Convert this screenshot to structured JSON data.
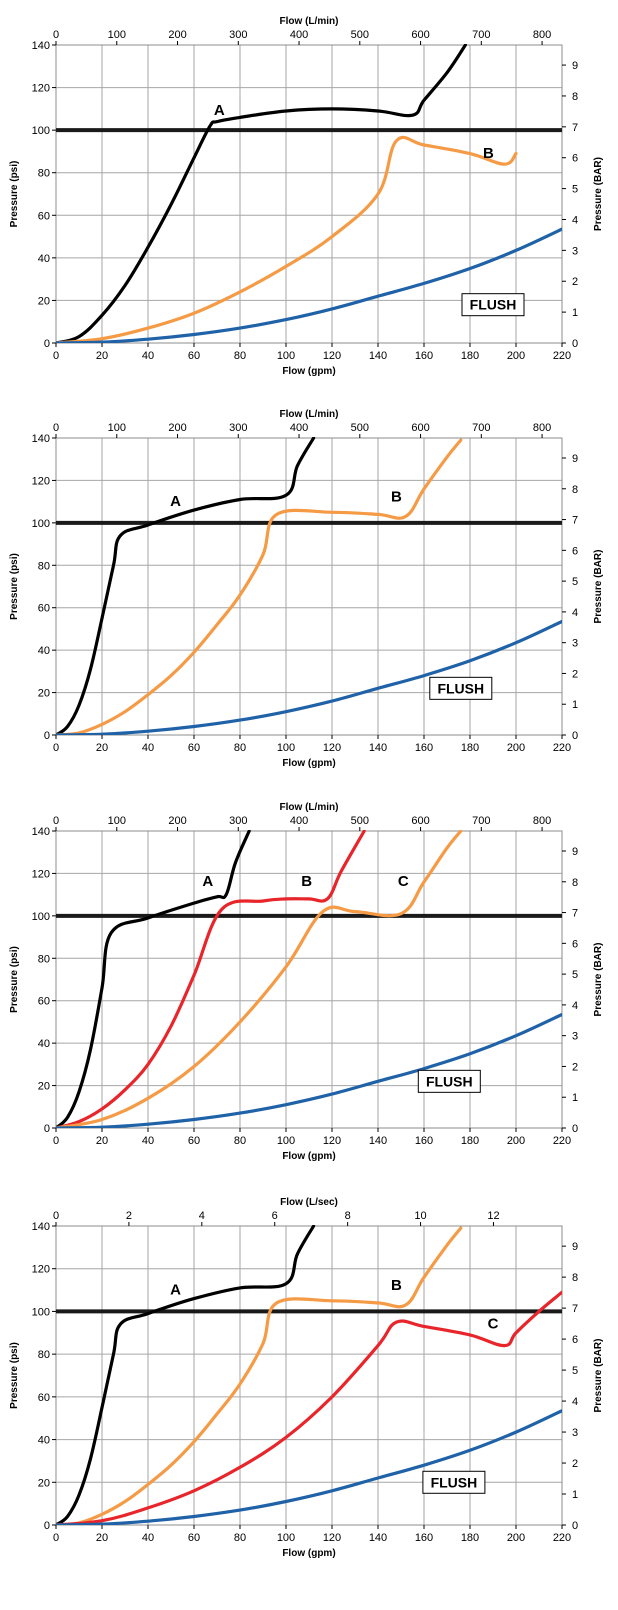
{
  "chart_data": [
    {
      "type": "line",
      "title": "",
      "xlabel": "Flow (gpm)",
      "ylabel": "Pressure (psi)",
      "x2label": "Flow (L/min)",
      "y2label": "Pressure (BAR)",
      "xlim": [
        0,
        220
      ],
      "ylim": [
        0,
        140
      ],
      "x2lim": [
        0,
        832.8
      ],
      "y2lim": [
        0,
        9.65
      ],
      "xticks": [
        "0",
        "20",
        "40",
        "60",
        "80",
        "100",
        "120",
        "140",
        "160",
        "180",
        "200",
        "220"
      ],
      "yticks": [
        "0",
        "20",
        "40",
        "60",
        "80",
        "100",
        "120",
        "140"
      ],
      "x2ticks": [
        "0",
        "100",
        "200",
        "300",
        "400",
        "500",
        "600",
        "700",
        "800"
      ],
      "y2ticks": [
        "0",
        "1",
        "2",
        "3",
        "4",
        "5",
        "6",
        "7",
        "8",
        "9"
      ],
      "grid": true,
      "reference_line": {
        "y": 100,
        "color": "#1a1a1a"
      },
      "flush_label": "FLUSH",
      "flush_box": {
        "x": 190,
        "y": 18
      },
      "series": [
        {
          "name": "A",
          "color": "#000000",
          "x": [
            0,
            10,
            20,
            30,
            40,
            50,
            60,
            67,
            70,
            80,
            100,
            120,
            140,
            155,
            160,
            170,
            178
          ],
          "y": [
            0,
            3,
            13,
            27,
            45,
            65,
            87,
            102,
            104,
            106,
            109,
            110,
            109,
            107,
            114,
            127,
            140
          ],
          "label_at": [
            71,
            107
          ]
        },
        {
          "name": "B",
          "color": "#f59a45",
          "x": [
            0,
            20,
            40,
            60,
            80,
            100,
            120,
            140,
            148,
            160,
            180,
            195,
            200
          ],
          "y": [
            0,
            2,
            7,
            14,
            24,
            36,
            50,
            70,
            95,
            93,
            89,
            84,
            89
          ],
          "label_at": [
            188,
            87
          ]
        },
        {
          "name": "FLUSH",
          "color": "#1f62a8",
          "x": [
            0,
            20,
            40,
            60,
            80,
            100,
            120,
            140,
            160,
            180,
            200,
            220
          ],
          "y": [
            0,
            0.4,
            1.8,
            4,
            7,
            11,
            16,
            22,
            28,
            35,
            43.5,
            53.5
          ]
        }
      ]
    },
    {
      "type": "line",
      "title": "",
      "xlabel": "Flow (gpm)",
      "ylabel": "Pressure (psi)",
      "x2label": "Flow (L/min)",
      "y2label": "Pressure (BAR)",
      "xlim": [
        0,
        220
      ],
      "ylim": [
        0,
        140
      ],
      "x2lim": [
        0,
        832.8
      ],
      "y2lim": [
        0,
        9.65
      ],
      "xticks": [
        "0",
        "20",
        "40",
        "60",
        "80",
        "100",
        "120",
        "140",
        "160",
        "180",
        "200",
        "220"
      ],
      "yticks": [
        "0",
        "20",
        "40",
        "60",
        "80",
        "100",
        "120",
        "140"
      ],
      "x2ticks": [
        "0",
        "100",
        "200",
        "300",
        "400",
        "500",
        "600",
        "700",
        "800"
      ],
      "y2ticks": [
        "0",
        "1",
        "2",
        "3",
        "4",
        "5",
        "6",
        "7",
        "8",
        "9"
      ],
      "grid": true,
      "reference_line": {
        "y": 100,
        "color": "#1a1a1a"
      },
      "flush_label": "FLUSH",
      "flush_box": {
        "x": 176,
        "y": 22
      },
      "series": [
        {
          "name": "A",
          "color": "#000000",
          "x": [
            0,
            5,
            10,
            15,
            20,
            25,
            28,
            40,
            60,
            80,
            100,
            105,
            112
          ],
          "y": [
            0,
            4,
            14,
            31,
            55,
            80,
            94,
            99,
            106,
            111,
            113,
            127,
            140
          ],
          "label_at": [
            52,
            108
          ]
        },
        {
          "name": "B",
          "color": "#f59a45",
          "x": [
            0,
            10,
            20,
            30,
            40,
            50,
            60,
            70,
            80,
            90,
            96,
            120,
            140,
            152,
            160,
            170,
            176
          ],
          "y": [
            0,
            1,
            5,
            11,
            19,
            28,
            39,
            52,
            66,
            85,
            104,
            105,
            104,
            103,
            116,
            131,
            139
          ],
          "label_at": [
            148,
            110
          ]
        },
        {
          "name": "FLUSH",
          "color": "#1f62a8",
          "x": [
            0,
            20,
            40,
            60,
            80,
            100,
            120,
            140,
            160,
            180,
            200,
            220
          ],
          "y": [
            0,
            0.4,
            1.8,
            4,
            7,
            11,
            16,
            22,
            28,
            35,
            43.5,
            53.5
          ]
        }
      ]
    },
    {
      "type": "line",
      "title": "",
      "xlabel": "Flow (gpm)",
      "ylabel": "Pressure (psi)",
      "x2label": "Flow (L/min)",
      "y2label": "Pressure (BAR)",
      "xlim": [
        0,
        220
      ],
      "ylim": [
        0,
        140
      ],
      "x2lim": [
        0,
        832.8
      ],
      "y2lim": [
        0,
        9.65
      ],
      "xticks": [
        "0",
        "20",
        "40",
        "60",
        "80",
        "100",
        "120",
        "140",
        "160",
        "180",
        "200",
        "220"
      ],
      "yticks": [
        "0",
        "20",
        "40",
        "60",
        "80",
        "100",
        "120",
        "140"
      ],
      "x2ticks": [
        "0",
        "100",
        "200",
        "300",
        "400",
        "500",
        "600",
        "700",
        "800"
      ],
      "y2ticks": [
        "0",
        "1",
        "2",
        "3",
        "4",
        "5",
        "6",
        "7",
        "8",
        "9"
      ],
      "grid": true,
      "reference_line": {
        "y": 100,
        "color": "#1a1a1a"
      },
      "flush_label": "FLUSH",
      "flush_box": {
        "x": 171,
        "y": 22
      },
      "series": [
        {
          "name": "A",
          "color": "#000000",
          "x": [
            0,
            5,
            10,
            15,
            20,
            24,
            40,
            60,
            70,
            74,
            78,
            84
          ],
          "y": [
            0,
            5,
            17,
            37,
            66,
            92,
            99,
            106,
            109,
            110,
            125,
            140
          ],
          "label_at": [
            66,
            114
          ]
        },
        {
          "name": "B",
          "color": "#e8252a",
          "x": [
            0,
            10,
            20,
            30,
            40,
            50,
            60,
            72,
            90,
            100,
            110,
            118,
            124,
            134
          ],
          "y": [
            0,
            3,
            9,
            18,
            30,
            48,
            72,
            103,
            107,
            108,
            108,
            108,
            121,
            140
          ],
          "label_at": [
            109,
            114
          ]
        },
        {
          "name": "C",
          "color": "#f59a45",
          "x": [
            0,
            20,
            40,
            60,
            80,
            100,
            116,
            130,
            150,
            160,
            170,
            176
          ],
          "y": [
            0,
            4,
            14,
            29,
            50,
            76,
            102,
            102,
            101,
            116,
            132,
            140
          ],
          "label_at": [
            151,
            114
          ]
        },
        {
          "name": "FLUSH",
          "color": "#1f62a8",
          "x": [
            0,
            20,
            40,
            60,
            80,
            100,
            120,
            140,
            160,
            180,
            200,
            220
          ],
          "y": [
            0,
            0.4,
            1.8,
            4,
            7,
            11,
            16,
            22,
            28,
            35,
            43.5,
            53.5
          ]
        }
      ]
    },
    {
      "type": "line",
      "title": "",
      "xlabel": "Flow (gpm)",
      "ylabel": "Pressure (psi)",
      "x2label": "Flow (L/sec)",
      "y2label": "Pressure (BAR)",
      "xlim": [
        0,
        220
      ],
      "ylim": [
        0,
        140
      ],
      "x2lim": [
        0,
        13.88
      ],
      "y2lim": [
        0,
        9.65
      ],
      "xticks": [
        "0",
        "20",
        "40",
        "60",
        "80",
        "100",
        "120",
        "140",
        "160",
        "180",
        "200",
        "220"
      ],
      "yticks": [
        "0",
        "20",
        "40",
        "60",
        "80",
        "100",
        "120",
        "140"
      ],
      "x2ticks": [
        "0",
        "2",
        "4",
        "6",
        "8",
        "10",
        "12"
      ],
      "y2ticks": [
        "0",
        "1",
        "2",
        "3",
        "4",
        "5",
        "6",
        "7",
        "8",
        "9"
      ],
      "grid": true,
      "reference_line": {
        "y": 100,
        "color": "#1a1a1a"
      },
      "flush_label": "FLUSH",
      "flush_box": {
        "x": 173,
        "y": 20
      },
      "series": [
        {
          "name": "A",
          "color": "#000000",
          "x": [
            0,
            5,
            10,
            15,
            20,
            25,
            28,
            40,
            60,
            80,
            100,
            105,
            112
          ],
          "y": [
            0,
            4,
            14,
            31,
            55,
            80,
            94,
            99,
            106,
            111,
            113,
            127,
            140
          ],
          "label_at": [
            52,
            108
          ]
        },
        {
          "name": "B",
          "color": "#f59a45",
          "x": [
            0,
            10,
            20,
            30,
            40,
            50,
            60,
            70,
            80,
            90,
            96,
            120,
            140,
            152,
            160,
            170,
            176
          ],
          "y": [
            0,
            1,
            5,
            11,
            19,
            28,
            39,
            52,
            66,
            85,
            104,
            105,
            104,
            103,
            116,
            131,
            139
          ],
          "label_at": [
            148,
            110
          ]
        },
        {
          "name": "C",
          "color": "#e8252a",
          "x": [
            0,
            20,
            40,
            60,
            80,
            100,
            120,
            140,
            148,
            160,
            180,
            195,
            200,
            210,
            220
          ],
          "y": [
            0,
            2,
            8,
            16,
            27,
            41,
            60,
            84,
            95,
            93,
            89,
            84,
            90,
            100,
            109
          ],
          "label_at": [
            190,
            92
          ]
        },
        {
          "name": "FLUSH",
          "color": "#1f62a8",
          "x": [
            0,
            20,
            40,
            60,
            80,
            100,
            120,
            140,
            160,
            180,
            200,
            220
          ],
          "y": [
            0,
            0.4,
            1.8,
            4,
            7,
            11,
            16,
            22,
            28,
            35,
            43.5,
            53.5
          ]
        }
      ]
    }
  ]
}
